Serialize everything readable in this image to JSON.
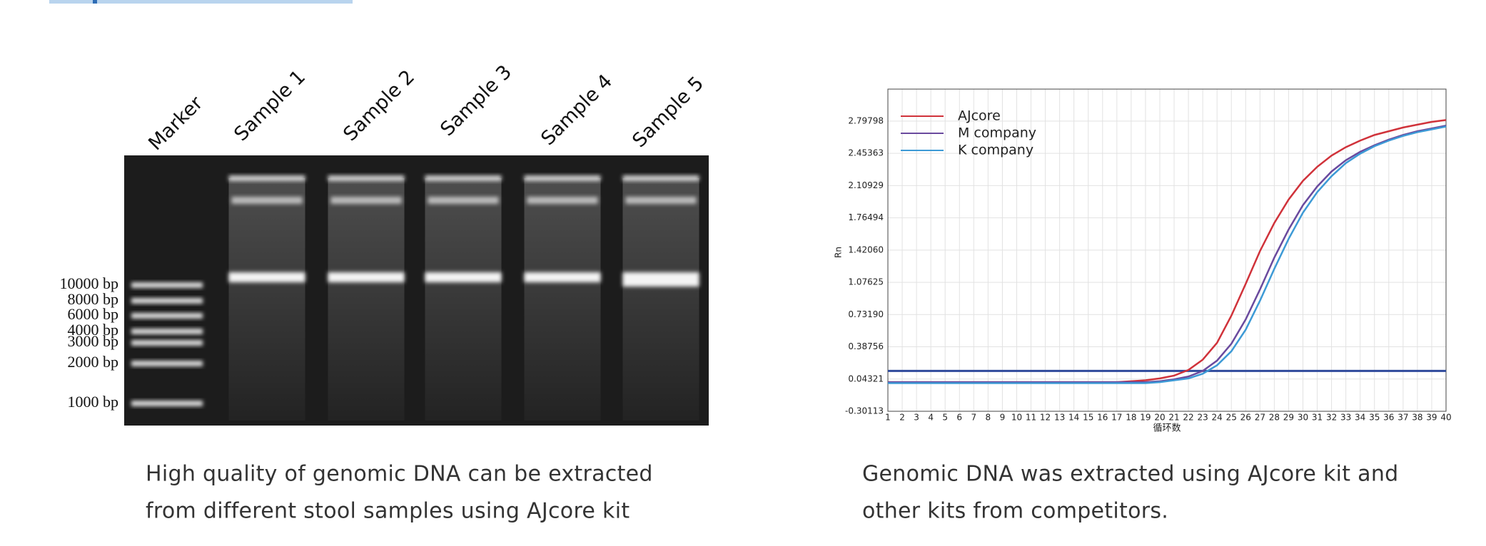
{
  "gel": {
    "lanes": [
      "Marker",
      "Sample 1",
      "Sample 2",
      "Sample 3",
      "Sample 4",
      "Sample 5"
    ],
    "marker_labels": [
      "10000 bp",
      "8000 bp",
      "6000 bp",
      "4000 bp",
      "3000 bp",
      "2000 bp",
      "1000 bp"
    ]
  },
  "captions": {
    "left": [
      "High quality of genomic DNA can be extracted",
      "from different stool samples using AJcore kit"
    ],
    "right": [
      "Genomic DNA was extracted using AJcore kit and",
      "other kits from competitors."
    ]
  },
  "chart_data": {
    "type": "line",
    "x_label": "循环数",
    "y_label": "Rn",
    "x": [
      1,
      2,
      3,
      4,
      5,
      6,
      7,
      8,
      9,
      10,
      11,
      12,
      13,
      14,
      15,
      16,
      17,
      18,
      19,
      20,
      21,
      22,
      23,
      24,
      25,
      26,
      27,
      28,
      29,
      30,
      31,
      32,
      33,
      34,
      35,
      36,
      37,
      38,
      39,
      40
    ],
    "xlim": [
      1,
      40
    ],
    "xticks": [
      1,
      2,
      3,
      4,
      5,
      6,
      7,
      8,
      9,
      10,
      11,
      12,
      13,
      14,
      15,
      16,
      17,
      18,
      19,
      20,
      21,
      22,
      23,
      24,
      25,
      26,
      27,
      28,
      29,
      30,
      31,
      32,
      33,
      34,
      35,
      36,
      37,
      38,
      39,
      40
    ],
    "ylim": [
      -0.30113,
      3.14
    ],
    "yticks": [
      -0.30113,
      0.04321,
      0.38756,
      {
        "value": 0.7319,
        "label": "0.73190"
      },
      1.07625,
      {
        "value": 1.4206,
        "label": "1.42060"
      },
      1.76494,
      2.10929,
      2.45363,
      2.79798
    ],
    "grid": true,
    "threshold": 0.13,
    "threshold_color": "#2f4a9c",
    "legend": "top-left",
    "series": [
      {
        "name": "AJcore",
        "color": "#d0323a",
        "values": [
          0.01,
          0.01,
          0.01,
          0.01,
          0.01,
          0.01,
          0.01,
          0.01,
          0.01,
          0.01,
          0.01,
          0.01,
          0.01,
          0.01,
          0.01,
          0.01,
          0.01,
          0.02,
          0.03,
          0.05,
          0.08,
          0.14,
          0.25,
          0.43,
          0.72,
          1.06,
          1.41,
          1.71,
          1.96,
          2.16,
          2.31,
          2.43,
          2.52,
          2.59,
          2.65,
          2.69,
          2.73,
          2.76,
          2.79,
          2.81
        ]
      },
      {
        "name": "M company",
        "color": "#6a4a9e",
        "values": [
          0.01,
          0.01,
          0.01,
          0.01,
          0.01,
          0.01,
          0.01,
          0.01,
          0.01,
          0.01,
          0.01,
          0.01,
          0.01,
          0.01,
          0.01,
          0.01,
          0.01,
          0.01,
          0.01,
          0.02,
          0.04,
          0.07,
          0.13,
          0.24,
          0.42,
          0.68,
          1.0,
          1.34,
          1.64,
          1.9,
          2.1,
          2.26,
          2.38,
          2.47,
          2.54,
          2.6,
          2.65,
          2.69,
          2.72,
          2.75
        ]
      },
      {
        "name": "K company",
        "color": "#3d9ad6",
        "values": [
          0.0,
          0.0,
          0.0,
          0.0,
          0.0,
          0.0,
          0.0,
          0.0,
          0.0,
          0.0,
          0.0,
          0.0,
          0.0,
          0.0,
          0.0,
          0.0,
          0.0,
          0.0,
          0.0,
          0.01,
          0.03,
          0.05,
          0.1,
          0.19,
          0.34,
          0.57,
          0.88,
          1.22,
          1.54,
          1.82,
          2.04,
          2.21,
          2.35,
          2.45,
          2.53,
          2.59,
          2.64,
          2.68,
          2.71,
          2.74
        ]
      }
    ]
  }
}
